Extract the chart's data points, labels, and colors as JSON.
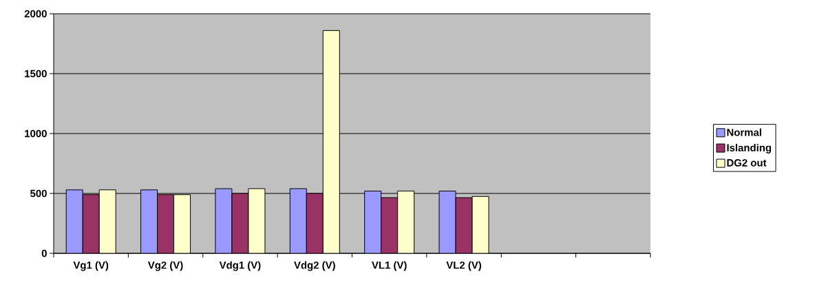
{
  "chart_data": {
    "type": "bar",
    "categories": [
      "Vg1 (V)",
      "Vg2 (V)",
      "Vdg1 (V)",
      "Vdg2 (V)",
      "VL1 (V)",
      "VL2 (V)",
      null,
      null
    ],
    "series": [
      {
        "name": "Normal",
        "color": "#9999ff",
        "values": [
          530,
          530,
          540,
          540,
          520,
          520,
          null,
          null
        ]
      },
      {
        "name": "Islanding",
        "color": "#993366",
        "values": [
          490,
          490,
          500,
          500,
          465,
          465,
          null,
          null
        ]
      },
      {
        "name": "DG2 out",
        "color": "#ffffcc",
        "values": [
          530,
          490,
          540,
          1860,
          520,
          475,
          null,
          null
        ]
      }
    ],
    "ylim": [
      0,
      2000
    ],
    "yticks": [
      0,
      500,
      1000,
      1500,
      2000
    ],
    "grid": "y",
    "legend": "right"
  }
}
